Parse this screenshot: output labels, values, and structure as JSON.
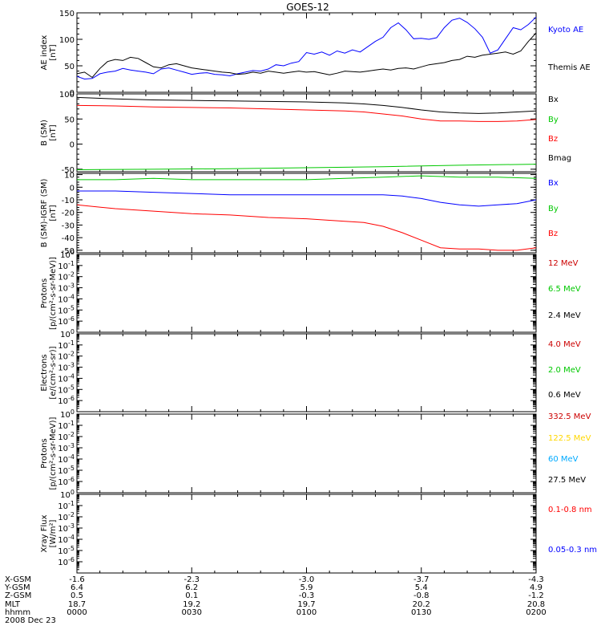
{
  "title": "GOES-12",
  "colors": {
    "black": "#000000",
    "blue": "#0000ff",
    "red": "#ff0000",
    "green": "#00c800",
    "darkred": "#cc0000",
    "yellow": "#ffd700",
    "cyan": "#00aaff"
  },
  "chart_data": [
    {
      "id": "ae",
      "type": "line",
      "ylabel": [
        "AE index",
        "[nT]"
      ],
      "ylim": [
        0,
        150
      ],
      "yticks": [
        0,
        50,
        100,
        150
      ],
      "log": false,
      "series": [
        {
          "name": "Kyoto AE",
          "color": "blue",
          "x": [
            0,
            2,
            4,
            6,
            8,
            10,
            12,
            14,
            16,
            18,
            20,
            22,
            24,
            26,
            28,
            30,
            32,
            34,
            36,
            38,
            40,
            42,
            44,
            46,
            48,
            50,
            52,
            54,
            56,
            58,
            60,
            62,
            64,
            66,
            68,
            70,
            72,
            74,
            76,
            78,
            80,
            82,
            84,
            86,
            88,
            90,
            92,
            94,
            96,
            98,
            100,
            102,
            104,
            106,
            108,
            110,
            112,
            114,
            116,
            118,
            120
          ],
          "y": [
            30,
            25,
            26,
            35,
            38,
            40,
            45,
            42,
            40,
            38,
            35,
            44,
            46,
            42,
            38,
            34,
            36,
            37,
            34,
            33,
            31,
            35,
            38,
            41,
            40,
            44,
            52,
            50,
            55,
            58,
            75,
            72,
            76,
            70,
            78,
            74,
            80,
            76,
            86,
            96,
            104,
            122,
            131,
            118,
            101,
            102,
            100,
            103,
            122,
            136,
            140,
            132,
            120,
            104,
            74,
            80,
            101,
            122,
            118,
            128,
            142
          ]
        },
        {
          "name": "Themis AE",
          "color": "black",
          "x": [
            0,
            2,
            4,
            6,
            8,
            10,
            12,
            14,
            16,
            18,
            20,
            22,
            24,
            26,
            28,
            30,
            32,
            34,
            36,
            38,
            40,
            42,
            44,
            46,
            48,
            50,
            52,
            54,
            56,
            58,
            60,
            62,
            64,
            66,
            68,
            70,
            72,
            74,
            76,
            78,
            80,
            82,
            84,
            86,
            88,
            90,
            92,
            94,
            96,
            98,
            100,
            102,
            104,
            106,
            108,
            110,
            112,
            114,
            116,
            118,
            120
          ],
          "y": [
            35,
            38,
            28,
            45,
            58,
            62,
            60,
            66,
            64,
            56,
            48,
            46,
            52,
            54,
            50,
            46,
            44,
            42,
            40,
            38,
            37,
            34,
            35,
            38,
            36,
            40,
            38,
            36,
            38,
            40,
            38,
            39,
            36,
            33,
            36,
            40,
            39,
            38,
            40,
            42,
            44,
            42,
            45,
            46,
            44,
            48,
            52,
            54,
            56,
            60,
            62,
            68,
            66,
            70,
            72,
            74,
            76,
            72,
            78,
            96,
            112
          ]
        }
      ]
    },
    {
      "id": "bsm",
      "type": "line",
      "ylabel": [
        "B (SM)",
        "[nT]"
      ],
      "ylim": [
        -55,
        100
      ],
      "yticks": [
        -50,
        0,
        50,
        100
      ],
      "log": false,
      "series": [
        {
          "name": "Bx",
          "color": "black",
          "x": [
            0,
            10,
            20,
            30,
            40,
            50,
            60,
            70,
            75,
            80,
            85,
            90,
            95,
            100,
            105,
            110,
            115,
            120
          ],
          "y": [
            93,
            90,
            88,
            87,
            86,
            85,
            84,
            82,
            80,
            77,
            73,
            68,
            64,
            62,
            61,
            62,
            64,
            66
          ]
        },
        {
          "name": "By",
          "color": "green",
          "x": [
            0,
            20,
            40,
            60,
            80,
            100,
            120
          ],
          "y": [
            -51,
            -50,
            -49,
            -47,
            -45,
            -42,
            -40
          ]
        },
        {
          "name": "Bz",
          "color": "red",
          "x": [
            0,
            10,
            20,
            30,
            40,
            50,
            60,
            70,
            75,
            80,
            85,
            90,
            95,
            100,
            105,
            110,
            115,
            120
          ],
          "y": [
            77,
            76,
            74,
            73,
            72,
            70,
            68,
            66,
            64,
            60,
            56,
            50,
            46,
            46,
            45,
            45,
            46,
            49
          ]
        },
        {
          "name": "Bmag",
          "color": "black",
          "x": [],
          "y": []
        }
      ]
    },
    {
      "id": "bres",
      "type": "line",
      "ylabel": [
        "B (SM)-IGRF (SM)",
        "[nT]"
      ],
      "ylim": [
        -52,
        11
      ],
      "yticks": [
        -50,
        -40,
        -30,
        -20,
        -10,
        0,
        10
      ],
      "log": false,
      "series": [
        {
          "name": "Bx",
          "color": "blue",
          "x": [
            0,
            10,
            20,
            30,
            40,
            50,
            60,
            70,
            80,
            85,
            90,
            95,
            100,
            105,
            110,
            115,
            120
          ],
          "y": [
            -3,
            -3,
            -4,
            -5,
            -6,
            -6,
            -6,
            -6,
            -6,
            -7,
            -9,
            -12,
            -14,
            -15,
            -14,
            -13,
            -10
          ]
        },
        {
          "name": "By",
          "color": "green",
          "x": [
            0,
            10,
            20,
            30,
            40,
            50,
            60,
            70,
            80,
            90,
            100,
            110,
            120
          ],
          "y": [
            6,
            6,
            7,
            6,
            6,
            6,
            6,
            7,
            8,
            9,
            8,
            8,
            7
          ]
        },
        {
          "name": "Bz",
          "color": "red",
          "x": [
            0,
            10,
            20,
            30,
            40,
            50,
            60,
            70,
            75,
            80,
            85,
            90,
            95,
            100,
            105,
            110,
            115,
            120
          ],
          "y": [
            -14,
            -17,
            -19,
            -21,
            -22,
            -24,
            -25,
            -27,
            -28,
            -31,
            -36,
            -42,
            -48,
            -49,
            -49,
            -50,
            -50,
            -48
          ]
        }
      ]
    },
    {
      "id": "protons1",
      "type": "line",
      "log": true,
      "ylabel": [
        "Protons",
        "[p/(cm²-s-sr-MeV)]"
      ],
      "ylim_exp": [
        -7,
        0
      ],
      "series": [
        {
          "name": "12 MeV",
          "color": "darkred",
          "x": [],
          "y": []
        },
        {
          "name": "6.5 MeV",
          "color": "green",
          "x": [],
          "y": []
        },
        {
          "name": "2.4 MeV",
          "color": "black",
          "x": [],
          "y": []
        }
      ]
    },
    {
      "id": "electrons",
      "type": "line",
      "log": true,
      "ylabel": [
        "Electrons",
        "[e/(cm²-s-sr)]"
      ],
      "ylim_exp": [
        -7,
        0
      ],
      "series": [
        {
          "name": "4.0 MeV",
          "color": "darkred",
          "x": [],
          "y": []
        },
        {
          "name": "2.0 MeV",
          "color": "green",
          "x": [],
          "y": []
        },
        {
          "name": "0.6 MeV",
          "color": "black",
          "x": [],
          "y": []
        }
      ]
    },
    {
      "id": "protons2",
      "type": "line",
      "log": true,
      "ylabel": [
        "Protons",
        "[p/(cm²-s-sr-MeV)]"
      ],
      "ylim_exp": [
        -7,
        0
      ],
      "series": [
        {
          "name": "332.5 MeV",
          "color": "darkred",
          "x": [],
          "y": []
        },
        {
          "name": "122.5 MeV",
          "color": "yellow",
          "x": [],
          "y": []
        },
        {
          "name": "60 MeV",
          "color": "cyan",
          "x": [],
          "y": []
        },
        {
          "name": "27.5 MeV",
          "color": "black",
          "x": [],
          "y": []
        }
      ]
    },
    {
      "id": "xray",
      "type": "line",
      "log": true,
      "ylabel": [
        "Xray  Flux",
        "[W/m²]"
      ],
      "ylim_exp": [
        -7,
        0
      ],
      "series": [
        {
          "name": "0.1-0.8 nm",
          "color": "red",
          "x": [],
          "y": []
        },
        {
          "name": "0.05-0.3 nm",
          "color": "blue",
          "x": [],
          "y": []
        }
      ]
    }
  ],
  "time_axis": {
    "xlim": [
      0,
      120
    ],
    "ticks": [
      0,
      30,
      60,
      90,
      120
    ],
    "rows": [
      {
        "label": "X-GSM",
        "values": [
          "-1.6",
          "-2.3",
          "-3.0",
          "-3.7",
          "-4.3"
        ]
      },
      {
        "label": "Y-GSM",
        "values": [
          "6.4",
          "6.2",
          "5.9",
          "5.4",
          "4.9"
        ]
      },
      {
        "label": "Z-GSM",
        "values": [
          "0.5",
          "0.1",
          "-0.3",
          "-0.8",
          "-1.2"
        ]
      },
      {
        "label": "MLT",
        "values": [
          "18.7",
          "19.2",
          "19.7",
          "20.2",
          "20.8"
        ]
      },
      {
        "label": "hhmm",
        "values": [
          "0000",
          "0030",
          "0100",
          "0130",
          "0200"
        ]
      }
    ],
    "date": "2008 Dec 23"
  }
}
